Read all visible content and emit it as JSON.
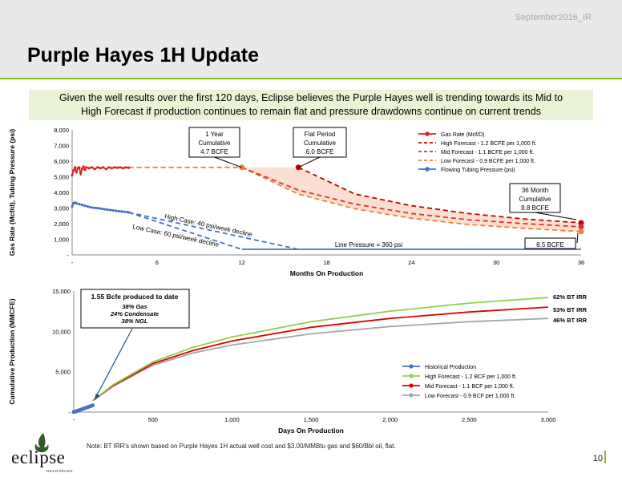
{
  "header": {
    "date_tag": "September2016_IR",
    "title": "Purple Hayes 1H Update"
  },
  "callout": {
    "line1": "Given the well results over the first 120 days, Eclipse believes the Purple Hayes well is trending towards its Mid to",
    "line2": "High Forecast if production continues to remain flat and pressure drawdowns continue on current trends"
  },
  "chart_data": [
    {
      "type": "line",
      "xlabel": "Months On Production",
      "ylabel": "Gas Rate (Mcf/d), Tubing Pressure (psi)",
      "xlim": [
        0,
        36
      ],
      "ylim": [
        0,
        8000
      ],
      "x_ticks": [
        "-",
        "6",
        "12",
        "18",
        "24",
        "30",
        "36"
      ],
      "y_ticks": [
        "-",
        "1,000",
        "2,000",
        "3,000",
        "4,000",
        "5,000",
        "6,000",
        "7,000",
        "8,000"
      ],
      "grid": false,
      "legend": "top-right",
      "series": [
        {
          "name": "Gas Rate (Mcf/D)",
          "color": "#e0201b",
          "style": "solid-markers",
          "x": [
            0.0,
            0.1,
            0.2,
            0.3,
            0.4,
            0.5,
            0.6,
            0.7,
            0.8,
            0.9,
            1.0,
            1.2,
            1.4,
            1.6,
            1.8,
            2.0,
            2.2,
            2.4,
            2.6,
            2.8,
            3.0,
            3.2,
            3.4,
            3.6,
            3.8,
            4.0
          ],
          "y": [
            5100,
            5400,
            5600,
            5300,
            5550,
            5600,
            5200,
            5500,
            5650,
            5450,
            5600,
            5550,
            5600,
            5500,
            5600,
            5550,
            5600,
            5500,
            5600,
            5550,
            5600,
            5580,
            5600,
            5550,
            5600,
            5580
          ]
        },
        {
          "name": "High Forecast - 1.2 BCFE per 1,000 ft.",
          "color": "#c00000",
          "style": "dashed",
          "x": [
            16,
            20,
            24,
            28,
            32,
            36
          ],
          "y": [
            5600,
            3900,
            3150,
            2650,
            2300,
            2050
          ]
        },
        {
          "name": "Mid Forecast - 1.1 BCFE per 1,000 ft.",
          "color": "#e03030",
          "style": "dashed",
          "x": [
            12,
            16,
            20,
            24,
            28,
            32,
            36
          ],
          "y": [
            5600,
            4150,
            3250,
            2650,
            2250,
            2000,
            1800
          ]
        },
        {
          "name": "Low Forecast - 0.9 BCFE per 1,000 ft.",
          "color": "#f08030",
          "style": "dashed",
          "x": [
            4,
            12,
            16,
            20,
            24,
            28,
            32,
            36
          ],
          "y": [
            5600,
            5600,
            3900,
            2950,
            2350,
            1950,
            1700,
            1500
          ]
        },
        {
          "name": "Flowing Tubing Pressure (psi)",
          "color": "#4472c4",
          "style": "solid-markers",
          "x": [
            0.0,
            0.1,
            0.2,
            0.3,
            0.5,
            0.7,
            0.9,
            1.1,
            1.3,
            1.5,
            1.7,
            1.9,
            2.1,
            2.3,
            2.5,
            2.7,
            2.9,
            3.1,
            3.3,
            3.5,
            3.7,
            3.9,
            4.0
          ],
          "y": [
            3100,
            3300,
            3350,
            3300,
            3250,
            3200,
            3150,
            3100,
            3050,
            3020,
            3000,
            2980,
            2950,
            2920,
            2900,
            2870,
            2850,
            2820,
            2800,
            2780,
            2760,
            2740,
            2720
          ]
        },
        {
          "name": "High Case pressure",
          "color": "#4472c4",
          "style": "dashed",
          "x": [
            4,
            16
          ],
          "y": [
            2720,
            360
          ]
        },
        {
          "name": "Low Case pressure",
          "color": "#4472c4",
          "style": "dashed",
          "x": [
            4,
            12
          ],
          "y": [
            2720,
            360
          ]
        },
        {
          "name": "Line Pressure",
          "color": "#4472c4",
          "style": "solid",
          "x": [
            12,
            36
          ],
          "y": [
            360,
            360
          ]
        }
      ],
      "markers": [
        {
          "x": 12,
          "y": 5600,
          "color": "#f08030"
        },
        {
          "x": 16,
          "y": 5600,
          "color": "#c00000"
        },
        {
          "x": 36,
          "y": 2050,
          "color": "#c00000"
        },
        {
          "x": 36,
          "y": 1800,
          "color": "#e03030"
        },
        {
          "x": 36,
          "y": 1500,
          "color": "#f08030"
        }
      ],
      "annotations": {
        "one_year": [
          "1 Year",
          "Cumulative",
          "4.7 BCFE"
        ],
        "flat_period": [
          "Flat Period",
          "Cumulative",
          "6.0 BCFE"
        ],
        "month36": [
          "36 Month",
          "Cumulative",
          "9.8 BCFE"
        ],
        "bcfe_85": "8.5 BCFE",
        "line_pressure": "Line Pressure = 360 psi",
        "high_case": "High Case: 40 psi/week decline",
        "low_case": "Low Case: 60 psi/week decline"
      }
    },
    {
      "type": "line",
      "xlabel": "Days On Production",
      "ylabel": "Cumulative Production (MMCFE)",
      "xlim": [
        0,
        3000
      ],
      "ylim": [
        0,
        15000
      ],
      "x_ticks": [
        "-",
        "500",
        "1,000",
        "1,500",
        "2,000",
        "2,500",
        "3,000"
      ],
      "y_ticks": [
        "-",
        "5,000",
        "10,000",
        "15,000"
      ],
      "grid": false,
      "legend": "bottom-right",
      "series": [
        {
          "name": "Historical Production",
          "color": "#4472c4",
          "style": "markers",
          "x": [
            0,
            10,
            20,
            30,
            40,
            50,
            60,
            70,
            80,
            90,
            100,
            110,
            120
          ],
          "y": [
            0,
            60,
            130,
            200,
            270,
            340,
            410,
            480,
            550,
            620,
            690,
            760,
            830
          ]
        },
        {
          "name": "High Forecast - 1.2 BCF per 1,000 ft.",
          "color": "#92d050",
          "style": "solid",
          "x": [
            120,
            250,
            500,
            750,
            1000,
            1500,
            2000,
            2500,
            3000
          ],
          "y": [
            1400,
            3400,
            6200,
            8000,
            9300,
            11200,
            12500,
            13500,
            14200
          ]
        },
        {
          "name": "Mid Forecast - 1.1 BCF per 1,000 ft.",
          "color": "#e00000",
          "style": "solid",
          "x": [
            120,
            250,
            500,
            750,
            1000,
            1500,
            2000,
            2500,
            3000
          ],
          "y": [
            1400,
            3300,
            6000,
            7600,
            8800,
            10500,
            11600,
            12400,
            13000
          ]
        },
        {
          "name": "Low Forecast - 0.9 BCF per 1,000 ft.",
          "color": "#a6a6a6",
          "style": "solid",
          "x": [
            120,
            250,
            500,
            750,
            1000,
            1500,
            2000,
            2500,
            3000
          ],
          "y": [
            1400,
            3200,
            5800,
            7300,
            8300,
            9700,
            10600,
            11200,
            11600
          ]
        }
      ],
      "irr_labels": [
        "62% BT IRR",
        "53% BT IRR",
        "46% BT IRR"
      ],
      "produced_box": {
        "title": "1.55 Bcfe produced to date",
        "lines": [
          "38% Gas",
          "24% Condensate",
          "38% NGL"
        ]
      }
    }
  ],
  "footer": {
    "note": "Note: BT IRR's shown based on Purple Hayes 1H actual well cost and $3.00/MMBtu gas and $60/Bbl oil, flat.",
    "page": "10"
  },
  "logo": {
    "name": "eclipse",
    "sub": "RESOURCES"
  }
}
